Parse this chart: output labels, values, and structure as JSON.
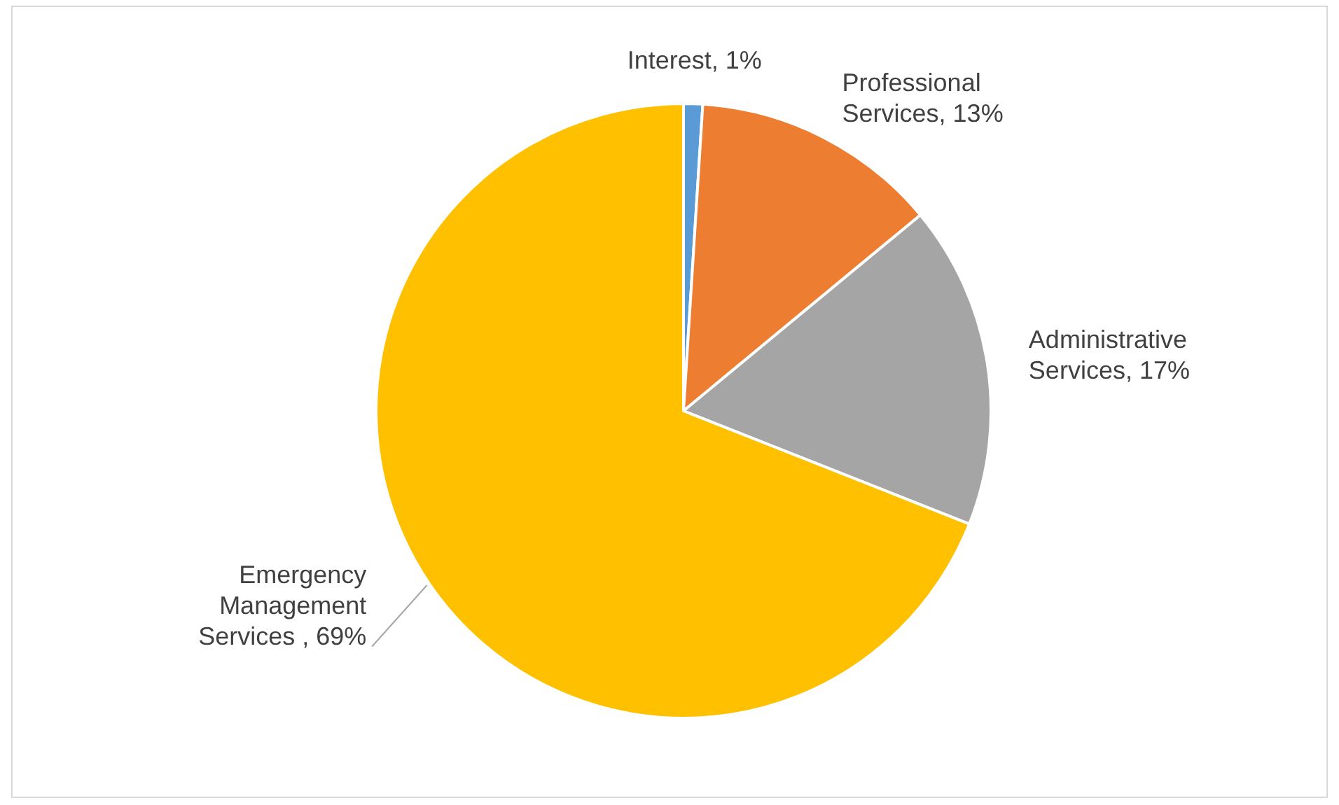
{
  "chart_data": {
    "type": "pie",
    "categories": [
      "Interest",
      "Professional Services",
      "Administrative Services",
      "Emergency Management Services "
    ],
    "values": [
      1,
      13,
      17,
      69
    ],
    "colors": [
      "#5b9bd5",
      "#ed7d31",
      "#a5a5a5",
      "#ffc000"
    ],
    "value_labels": [
      "1%",
      "13%",
      "17%",
      "69%"
    ],
    "legend": false
  }
}
